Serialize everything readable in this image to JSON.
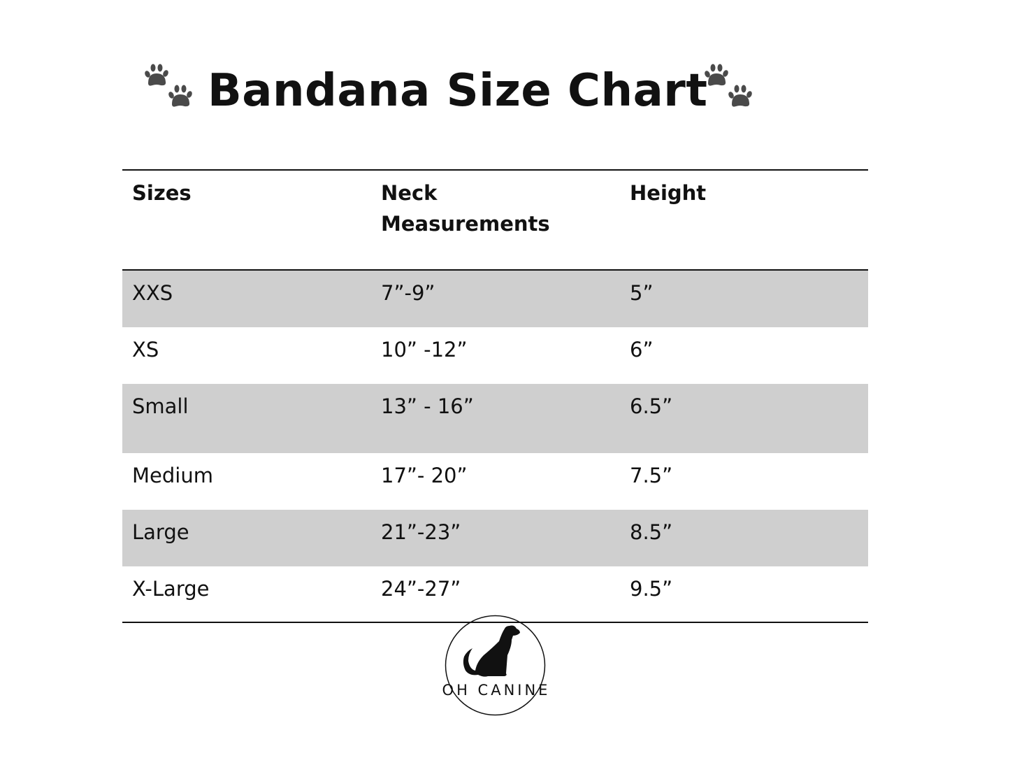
{
  "title": "Bandana Size Chart",
  "icons": {
    "title_decoration": "paw-prints-icon",
    "logo": "sitting-dog-icon"
  },
  "table": {
    "headers": [
      "Sizes",
      "Neck Measurements",
      "Height"
    ],
    "rows": [
      [
        "XXS",
        "7”-9”",
        "5”"
      ],
      [
        "XS",
        "10” -12”",
        "6”"
      ],
      [
        "Small",
        "13” - 16”",
        "6.5”"
      ],
      [
        "Medium",
        "17”- 20”",
        "7.5”"
      ],
      [
        "Large",
        "21”-23”",
        "8.5”"
      ],
      [
        "X-Large",
        "24”-27”",
        "9.5”"
      ]
    ],
    "shaded_row_color": "#cfcfcf"
  },
  "logo": {
    "text": "OH CANINE"
  }
}
